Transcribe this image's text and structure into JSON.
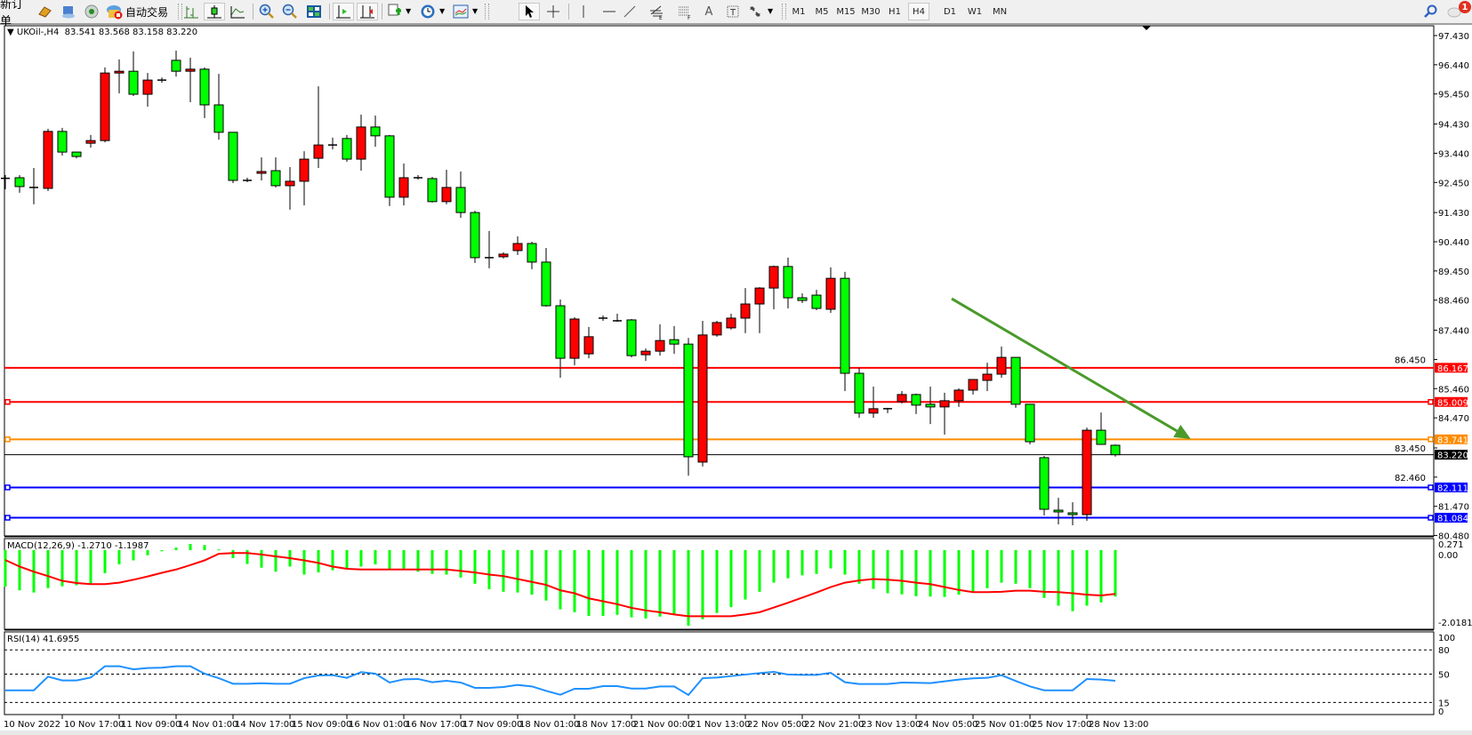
{
  "toolbar": {
    "new_order_label": "新订单",
    "auto_trading_label": "自动交易",
    "timeframes": [
      "M1",
      "M5",
      "M15",
      "M30",
      "H1",
      "H4",
      "D1",
      "W1",
      "MN"
    ],
    "active_timeframe": "H4",
    "notification_count": "1",
    "icons": [
      "market-watch-icon",
      "navigator-icon",
      "signals-icon",
      "auto-trading-icon",
      "bar-chart-icon",
      "candlestick-icon",
      "line-chart-icon",
      "zoom-in-icon",
      "zoom-out-icon",
      "tile-windows-icon",
      "auto-scroll-icon",
      "chart-shift-icon",
      "indicators-icon",
      "periods-icon",
      "templates-icon",
      "cursor-icon",
      "crosshair-icon",
      "vertical-line-icon",
      "horizontal-line-icon",
      "trendline-icon",
      "fibonacci-expansion-icon",
      "fibonacci-fan-icon",
      "text-icon",
      "text-label-icon",
      "arrows-icon",
      "search-icon",
      "notifications-icon"
    ]
  },
  "chart_header": "UKOil-,H4  83.541 83.568 83.158 83.220",
  "macd_title": "MACD(12,26,9) -1.2710 -1.1987",
  "rsi_title": "RSI(14) 41.6955",
  "colors": {
    "bear_candle": "#00ff00",
    "bull_candle": "#ff0000",
    "macd_histogram": "#00ff00",
    "macd_signal": "#ff0000",
    "rsi_line": "#1e90ff",
    "arrow": "#4a9a2a"
  },
  "chart_data": [
    {
      "type": "candlestick",
      "symbol": "UKOil-",
      "timeframe": "H4",
      "ohlc_format": [
        "open",
        "high",
        "low",
        "close"
      ],
      "candles": [
        [
          92.59,
          92.7,
          92.22,
          92.59
        ],
        [
          92.61,
          92.7,
          92.1,
          92.31
        ],
        [
          92.28,
          92.94,
          91.71,
          92.28
        ],
        [
          92.25,
          94.27,
          92.16,
          94.18
        ],
        [
          94.18,
          94.3,
          93.36,
          93.48
        ],
        [
          93.48,
          93.48,
          93.27,
          93.33
        ],
        [
          93.78,
          94.06,
          93.63,
          93.87
        ],
        [
          93.87,
          96.35,
          93.81,
          96.16
        ],
        [
          96.16,
          96.62,
          95.47,
          96.22
        ],
        [
          96.22,
          96.89,
          95.38,
          95.44
        ],
        [
          95.44,
          96.16,
          95.02,
          95.92
        ],
        [
          95.92,
          96.01,
          95.83,
          95.92
        ],
        [
          96.59,
          96.92,
          96.04,
          96.22
        ],
        [
          96.22,
          96.68,
          95.17,
          96.29
        ],
        [
          96.29,
          96.35,
          94.63,
          95.08
        ],
        [
          95.08,
          96.13,
          93.9,
          94.15
        ],
        [
          94.15,
          94.15,
          92.43,
          92.52
        ],
        [
          92.52,
          92.61,
          92.46,
          92.52
        ],
        [
          92.76,
          93.3,
          92.52,
          92.82
        ],
        [
          92.85,
          93.3,
          92.28,
          92.34
        ],
        [
          92.34,
          92.97,
          91.53,
          92.49
        ],
        [
          92.49,
          93.51,
          91.67,
          93.24
        ],
        [
          93.27,
          95.71,
          92.94,
          93.72
        ],
        [
          93.72,
          93.97,
          93.57,
          93.72
        ],
        [
          93.94,
          94.06,
          93.15,
          93.24
        ],
        [
          93.24,
          94.75,
          92.85,
          94.33
        ],
        [
          94.33,
          94.72,
          93.66,
          94.03
        ],
        [
          94.03,
          94.06,
          91.65,
          91.95
        ],
        [
          91.95,
          93.09,
          91.67,
          92.61
        ],
        [
          92.61,
          92.7,
          92.55,
          92.61
        ],
        [
          92.58,
          92.64,
          91.77,
          91.8
        ],
        [
          91.8,
          92.88,
          91.71,
          92.28
        ],
        [
          92.28,
          92.82,
          91.25,
          91.43
        ],
        [
          91.43,
          91.49,
          89.72,
          89.9
        ],
        [
          89.9,
          90.8,
          89.54,
          89.9
        ],
        [
          89.93,
          90.08,
          89.87,
          90.02
        ],
        [
          90.14,
          90.62,
          89.99,
          90.38
        ],
        [
          90.38,
          90.44,
          89.51,
          89.75
        ],
        [
          89.75,
          90.23,
          88.24,
          88.27
        ],
        [
          88.27,
          88.48,
          85.83,
          86.49
        ],
        [
          86.49,
          87.88,
          86.25,
          87.82
        ],
        [
          86.64,
          87.55,
          86.49,
          87.22
        ],
        [
          87.85,
          87.94,
          87.76,
          87.85
        ],
        [
          87.76,
          88.0,
          87.73,
          87.76
        ],
        [
          87.79,
          87.82,
          86.52,
          86.58
        ],
        [
          86.61,
          86.82,
          86.4,
          86.73
        ],
        [
          86.73,
          87.64,
          86.58,
          87.09
        ],
        [
          87.12,
          87.58,
          86.64,
          86.97
        ],
        [
          86.97,
          87.18,
          82.51,
          83.15
        ],
        [
          82.97,
          87.76,
          82.82,
          87.28
        ],
        [
          87.28,
          87.76,
          87.22,
          87.7
        ],
        [
          87.52,
          88.0,
          87.46,
          87.85
        ],
        [
          87.85,
          88.87,
          87.34,
          88.33
        ],
        [
          88.33,
          88.9,
          87.34,
          88.87
        ],
        [
          88.87,
          89.63,
          88.15,
          89.6
        ],
        [
          89.6,
          89.9,
          88.18,
          88.54
        ],
        [
          88.54,
          88.69,
          88.36,
          88.45
        ],
        [
          88.63,
          88.81,
          88.12,
          88.18
        ],
        [
          88.15,
          89.57,
          88.03,
          89.2
        ],
        [
          89.2,
          89.42,
          85.38,
          85.98
        ],
        [
          85.98,
          86.16,
          84.47,
          84.63
        ],
        [
          84.63,
          85.53,
          84.47,
          84.78
        ],
        [
          84.78,
          84.81,
          84.63,
          84.78
        ],
        [
          85.02,
          85.38,
          84.96,
          85.26
        ],
        [
          85.26,
          85.29,
          84.6,
          84.9
        ],
        [
          84.93,
          85.53,
          84.26,
          84.84
        ],
        [
          84.84,
          85.32,
          83.9,
          85.05
        ],
        [
          85.05,
          85.47,
          84.84,
          85.41
        ],
        [
          85.41,
          85.77,
          85.26,
          85.77
        ],
        [
          85.74,
          86.34,
          85.38,
          85.95
        ],
        [
          85.95,
          86.89,
          85.83,
          86.52
        ],
        [
          86.52,
          86.52,
          84.81,
          84.93
        ],
        [
          84.93,
          84.93,
          83.57,
          83.66
        ],
        [
          83.12,
          83.18,
          81.16,
          81.37
        ],
        [
          81.34,
          81.76,
          80.86,
          81.28
        ],
        [
          81.25,
          81.61,
          80.83,
          81.19
        ],
        [
          81.19,
          84.14,
          80.98,
          84.05
        ],
        [
          84.05,
          84.65,
          83.57,
          83.57
        ],
        [
          83.541,
          83.568,
          83.158,
          83.22
        ]
      ],
      "time_labels": [
        {
          "bar": 0,
          "label": "10 Nov 2022"
        },
        {
          "bar": 4,
          "label": "10 Nov 17:00"
        },
        {
          "bar": 8,
          "label": "11 Nov 09:00"
        },
        {
          "bar": 12,
          "label": "14 Nov 01:00"
        },
        {
          "bar": 16,
          "label": "14 Nov 17:00"
        },
        {
          "bar": 20,
          "label": "15 Nov 09:00"
        },
        {
          "bar": 24,
          "label": "16 Nov 01:00"
        },
        {
          "bar": 28,
          "label": "16 Nov 17:00"
        },
        {
          "bar": 32,
          "label": "17 Nov 09:00"
        },
        {
          "bar": 36,
          "label": "18 Nov 01:00"
        },
        {
          "bar": 40,
          "label": "18 Nov 17:00"
        },
        {
          "bar": 44,
          "label": "21 Nov 00:00"
        },
        {
          "bar": 48,
          "label": "21 Nov 13:00"
        },
        {
          "bar": 52,
          "label": "22 Nov 05:00"
        },
        {
          "bar": 56,
          "label": "22 Nov 21:00"
        },
        {
          "bar": 60,
          "label": "23 Nov 13:00"
        },
        {
          "bar": 64,
          "label": "24 Nov 05:00"
        },
        {
          "bar": 68,
          "label": "25 Nov 01:00"
        },
        {
          "bar": 72,
          "label": "25 Nov 17:00"
        },
        {
          "bar": 76,
          "label": "28 Nov 13:00"
        }
      ],
      "price_ticks": [
        "97.430",
        "96.440",
        "95.450",
        "94.430",
        "93.440",
        "92.450",
        "91.430",
        "90.440",
        "89.450",
        "88.460",
        "87.440",
        "86.450",
        "85.460",
        "84.470",
        "83.450",
        "82.460",
        "81.470",
        "80.480"
      ],
      "ylim": [
        80.48,
        97.43
      ],
      "horizontal_levels": [
        {
          "price": "86.167",
          "color": "#ff0000",
          "handle": false
        },
        {
          "price": "85.009",
          "color": "#ff0000",
          "handle": true
        },
        {
          "price": "83.741",
          "color": "#ff8c00",
          "handle": true
        },
        {
          "price": "83.220",
          "color": "#000000",
          "handle": false,
          "bid_line": true
        },
        {
          "price": "82.111",
          "color": "#0000ff",
          "handle": true
        },
        {
          "price": "81.084",
          "color": "#0000ff",
          "handle": true
        }
      ],
      "trend_arrow": {
        "from": {
          "bar": 66.5,
          "price": 88.51
        },
        "to": {
          "bar": 83.3,
          "price": 83.75
        },
        "direction": "down"
      }
    },
    {
      "type": "bar",
      "indicator": "MACD(12,26,9)",
      "ticks": [
        "0.271",
        "0.00",
        "-2.0181"
      ],
      "ylim": [
        -2.0181,
        0.271
      ],
      "histogram": [
        -1.0,
        -1.1,
        -1.16,
        -1.04,
        -0.99,
        -0.96,
        -0.91,
        -0.63,
        -0.39,
        -0.28,
        -0.14,
        -0.03,
        0.07,
        0.17,
        0.14,
        0.02,
        -0.22,
        -0.38,
        -0.48,
        -0.59,
        -0.45,
        -0.67,
        -0.61,
        -0.55,
        -0.51,
        -0.45,
        -0.39,
        -0.51,
        -0.51,
        -0.59,
        -0.65,
        -0.67,
        -0.75,
        -0.92,
        -1.07,
        -1.14,
        -1.16,
        -1.22,
        -1.38,
        -1.62,
        -1.7,
        -1.8,
        -1.8,
        -1.77,
        -1.84,
        -1.87,
        -1.82,
        -1.76,
        -2.07,
        -1.89,
        -1.72,
        -1.56,
        -1.35,
        -1.14,
        -0.89,
        -0.77,
        -0.69,
        -0.65,
        -0.5,
        -0.67,
        -0.92,
        -1.06,
        -1.18,
        -1.21,
        -1.26,
        -1.27,
        -1.28,
        -1.22,
        -1.14,
        -1.04,
        -0.89,
        -0.92,
        -1.04,
        -1.31,
        -1.52,
        -1.67,
        -1.52,
        -1.43,
        -1.271
      ],
      "signal": [
        -0.27,
        -0.45,
        -0.59,
        -0.71,
        -0.84,
        -0.9,
        -0.93,
        -0.93,
        -0.89,
        -0.81,
        -0.72,
        -0.62,
        -0.53,
        -0.41,
        -0.28,
        -0.1,
        -0.08,
        -0.08,
        -0.12,
        -0.17,
        -0.22,
        -0.28,
        -0.35,
        -0.45,
        -0.51,
        -0.53,
        -0.53,
        -0.53,
        -0.53,
        -0.53,
        -0.53,
        -0.53,
        -0.57,
        -0.61,
        -0.67,
        -0.71,
        -0.79,
        -0.87,
        -0.95,
        -1.1,
        -1.18,
        -1.32,
        -1.4,
        -1.48,
        -1.58,
        -1.65,
        -1.7,
        -1.76,
        -1.81,
        -1.81,
        -1.81,
        -1.81,
        -1.76,
        -1.7,
        -1.57,
        -1.44,
        -1.3,
        -1.16,
        -1.01,
        -0.89,
        -0.83,
        -0.79,
        -0.81,
        -0.84,
        -0.89,
        -0.93,
        -1.01,
        -1.09,
        -1.15,
        -1.15,
        -1.14,
        -1.11,
        -1.11,
        -1.14,
        -1.15,
        -1.18,
        -1.22,
        -1.24,
        -1.1987
      ]
    },
    {
      "type": "line",
      "indicator": "RSI(14)",
      "ticks": [
        "100",
        "80",
        "50",
        "15",
        "0"
      ],
      "levels": [
        80,
        50,
        15
      ],
      "ylim": [
        0,
        100
      ],
      "values": [
        30,
        30,
        30,
        46.9,
        42.2,
        42.2,
        45.8,
        59.8,
        59.8,
        55.9,
        57.6,
        58.0,
        59.8,
        59.8,
        50.6,
        45.0,
        38.1,
        38.1,
        38.8,
        38.1,
        38.1,
        45.0,
        48.4,
        48.7,
        45.4,
        52.4,
        50.6,
        39.6,
        43.6,
        44.0,
        40.0,
        41.8,
        39.6,
        33.0,
        33.0,
        34.1,
        36.6,
        34.8,
        29.3,
        24.5,
        31.9,
        31.9,
        35.2,
        35.2,
        32.2,
        32.2,
        34.8,
        34.8,
        24.2,
        45.0,
        45.8,
        47.6,
        49.5,
        51.3,
        52.7,
        49.5,
        49.1,
        49.1,
        51.6,
        40.0,
        37.8,
        37.8,
        37.8,
        39.6,
        39.3,
        38.9,
        41.1,
        43.3,
        44.8,
        45.4,
        48.7,
        41.5,
        34.8,
        30.0,
        30.0,
        30.0,
        44.0,
        43.3,
        41.6955
      ]
    }
  ]
}
